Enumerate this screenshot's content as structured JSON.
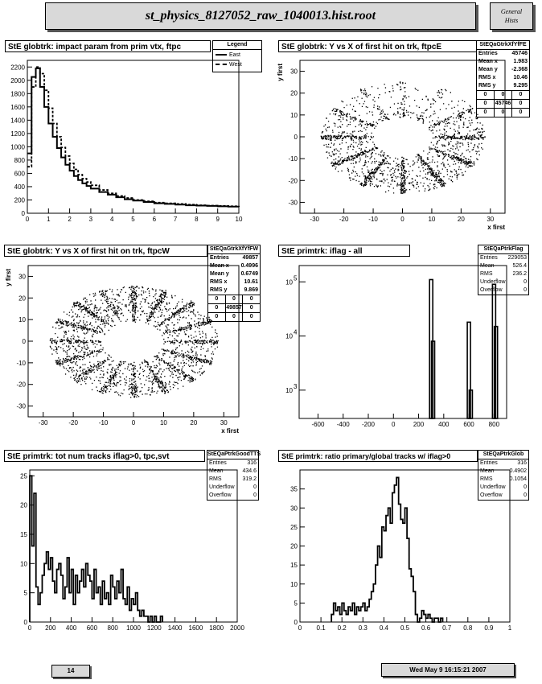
{
  "header": {
    "title": "st_physics_8127052_raw_1040013.hist.root",
    "side_line1": "General",
    "side_line2": "Hists"
  },
  "footer": {
    "page": "14",
    "datetime": "Wed May  9 16:15:21 2007"
  },
  "chart_data": [
    {
      "id": "p1",
      "type": "line",
      "title": "StE globtrk: impact param from prim vtx, ftpc",
      "xlim": [
        0,
        10
      ],
      "ylim": [
        0,
        2300
      ],
      "xticks": [
        0,
        1,
        2,
        3,
        4,
        5,
        6,
        7,
        8,
        9,
        10
      ],
      "yticks": [
        0,
        200,
        400,
        600,
        800,
        1000,
        1200,
        1400,
        1600,
        1800,
        2000,
        2200
      ],
      "legend": {
        "title": "Legend",
        "entries": [
          "East",
          "West"
        ]
      },
      "series": [
        {
          "name": "East",
          "x": [
            0,
            0.2,
            0.4,
            0.6,
            0.8,
            1.0,
            1.2,
            1.4,
            1.6,
            1.8,
            2.0,
            2.2,
            2.4,
            2.6,
            2.8,
            3.0,
            3.4,
            3.8,
            4.2,
            4.6,
            5.0,
            5.5,
            6.0,
            6.5,
            7.0,
            7.5,
            8.0,
            8.5,
            9.0,
            9.5,
            10
          ],
          "values": [
            900,
            2050,
            2180,
            1900,
            1600,
            1350,
            1150,
            980,
            840,
            730,
            640,
            560,
            500,
            450,
            410,
            370,
            320,
            280,
            240,
            210,
            190,
            170,
            150,
            140,
            130,
            120,
            115,
            110,
            105,
            100,
            95
          ]
        },
        {
          "name": "West",
          "x": [
            0,
            0.2,
            0.4,
            0.6,
            0.8,
            1.0,
            1.2,
            1.4,
            1.6,
            1.8,
            2.0,
            2.2,
            2.4,
            2.6,
            2.8,
            3.0,
            3.4,
            3.8,
            4.2,
            4.6,
            5.0,
            5.5,
            6.0,
            6.5,
            7.0,
            7.5,
            8.0,
            8.5,
            9.0,
            9.5,
            10
          ],
          "values": [
            700,
            1900,
            2200,
            2100,
            1850,
            1580,
            1350,
            1150,
            990,
            860,
            750,
            660,
            580,
            520,
            470,
            420,
            350,
            300,
            260,
            230,
            200,
            180,
            160,
            150,
            140,
            130,
            120,
            115,
            110,
            105,
            100
          ]
        }
      ]
    },
    {
      "id": "p2",
      "type": "scatter",
      "title": "StE globtrk: Y vs X of first hit on trk, ftpcE",
      "xlim": [
        -35,
        35
      ],
      "ylim": [
        -35,
        35
      ],
      "xlabel": "x first",
      "ylabel": "y first",
      "xticks": [
        -30,
        -20,
        -10,
        0,
        10,
        20,
        30
      ],
      "yticks": [
        -30,
        -20,
        -10,
        0,
        10,
        20,
        30
      ],
      "stats": {
        "name": "StEQaGtrkXfYfFE",
        "rows": [
          [
            "Entries",
            "45746"
          ],
          [
            "Mean x",
            "1.983"
          ],
          [
            "Mean y",
            "-2.368"
          ],
          [
            "RMS x",
            "10.46"
          ],
          [
            "RMS y",
            "9.295"
          ]
        ],
        "grid": [
          [
            "0",
            "0",
            "0"
          ],
          [
            "0",
            "45746",
            "0"
          ],
          [
            "0",
            "0",
            "0"
          ]
        ]
      }
    },
    {
      "id": "p3",
      "type": "scatter",
      "title": "StE globtrk: Y vs X of first hit on trk, ftpcW",
      "xlim": [
        -35,
        35
      ],
      "ylim": [
        -35,
        35
      ],
      "xlabel": "x first",
      "ylabel": "y first",
      "xticks": [
        -30,
        -20,
        -10,
        0,
        10,
        20,
        30
      ],
      "yticks": [
        -30,
        -20,
        -10,
        0,
        10,
        20,
        30
      ],
      "stats": {
        "name": "StEQaGtrkXfYfFW",
        "rows": [
          [
            "Entries",
            "49857"
          ],
          [
            "Mean x",
            "0.4996"
          ],
          [
            "Mean y",
            "0.6749"
          ],
          [
            "RMS x",
            "10.61"
          ],
          [
            "RMS y",
            "9.869"
          ]
        ],
        "grid": [
          [
            "0",
            "0",
            "0"
          ],
          [
            "0",
            "49857",
            "0"
          ],
          [
            "0",
            "0",
            "0"
          ]
        ]
      }
    },
    {
      "id": "p4",
      "type": "bar",
      "title": "StE primtrk: iflag - all",
      "xlim": [
        -750,
        900
      ],
      "ylim_log": [
        300,
        200000
      ],
      "log_y": true,
      "xticks": [
        -600,
        -400,
        -200,
        0,
        200,
        400,
        600,
        800
      ],
      "yticks": [
        {
          "value": 1000,
          "label": "10",
          "exp": "3"
        },
        {
          "value": 10000,
          "label": "10",
          "exp": "4"
        },
        {
          "value": 100000,
          "label": "10",
          "exp": "5"
        }
      ],
      "bars": [
        {
          "x": 300,
          "value": 110000
        },
        {
          "x": 315,
          "value": 8000
        },
        {
          "x": 600,
          "value": 18000
        },
        {
          "x": 615,
          "value": 1000
        },
        {
          "x": 800,
          "value": 90000
        },
        {
          "x": 815,
          "value": 15000
        }
      ],
      "stats": {
        "name": "StEQaPtrkFlag",
        "rows": [
          [
            "Entries",
            "229053"
          ],
          [
            "Mean",
            "526.4"
          ],
          [
            "RMS",
            "236.2"
          ],
          [
            "Underflow",
            "0"
          ],
          [
            "Overflow",
            "0"
          ]
        ]
      }
    },
    {
      "id": "p5",
      "type": "bar",
      "title": "StE primtrk: tot num tracks iflag>0, tpc,svt",
      "xlim": [
        0,
        2000
      ],
      "ylim": [
        0,
        26
      ],
      "xticks": [
        0,
        200,
        400,
        600,
        800,
        1000,
        1200,
        1400,
        1600,
        1800,
        2000
      ],
      "yticks": [
        0,
        5,
        10,
        15,
        20,
        25
      ],
      "bin_width": 20,
      "values": [
        25,
        13,
        22,
        6,
        3,
        5,
        8,
        10,
        12,
        9,
        11,
        7,
        5,
        9,
        10,
        8,
        4,
        6,
        11,
        5,
        9,
        3,
        8,
        5,
        7,
        9,
        6,
        10,
        8,
        7,
        4,
        9,
        5,
        6,
        3,
        7,
        4,
        5,
        3,
        8,
        6,
        4,
        7,
        5,
        9,
        4,
        3,
        6,
        2,
        4,
        3,
        5,
        2,
        1,
        2,
        1,
        1,
        0,
        1,
        0,
        1,
        0,
        0,
        1
      ],
      "stats": {
        "name": "StEQaPtrkGoodTTS",
        "rows": [
          [
            "Entries",
            "316"
          ],
          [
            "Mean",
            "434.6"
          ],
          [
            "RMS",
            "319.2"
          ],
          [
            "Underflow",
            "0"
          ],
          [
            "Overflow",
            "0"
          ]
        ]
      }
    },
    {
      "id": "p6",
      "type": "bar",
      "title": "StE primtrk: ratio primary/global tracks w/ iflag>0",
      "xlim": [
        0,
        1
      ],
      "ylim": [
        0,
        40
      ],
      "xticks": [
        0,
        0.1,
        0.2,
        0.3,
        0.4,
        0.5,
        0.6,
        0.7,
        0.8,
        0.9,
        1
      ],
      "yticks": [
        0,
        5,
        10,
        15,
        20,
        25,
        30,
        35
      ],
      "bin_x0": 0.15,
      "bin_width": 0.01,
      "values": [
        2,
        5,
        3,
        4,
        2,
        5,
        3,
        2,
        4,
        3,
        5,
        2,
        4,
        3,
        4,
        5,
        3,
        4,
        6,
        8,
        10,
        15,
        20,
        17,
        25,
        24,
        28,
        30,
        26,
        34,
        36,
        38,
        31,
        27,
        26,
        30,
        22,
        14,
        12,
        8,
        2,
        0,
        1,
        3,
        2,
        1,
        2,
        1,
        0,
        1,
        1,
        0,
        1
      ],
      "stats": {
        "name": "StEQaPtrkGlob",
        "rows": [
          [
            "Entries",
            "316"
          ],
          [
            "Mean",
            "0.4902"
          ],
          [
            "RMS",
            "0.1054"
          ],
          [
            "Underflow",
            "0"
          ],
          [
            "Overflow",
            "0"
          ]
        ]
      }
    }
  ]
}
